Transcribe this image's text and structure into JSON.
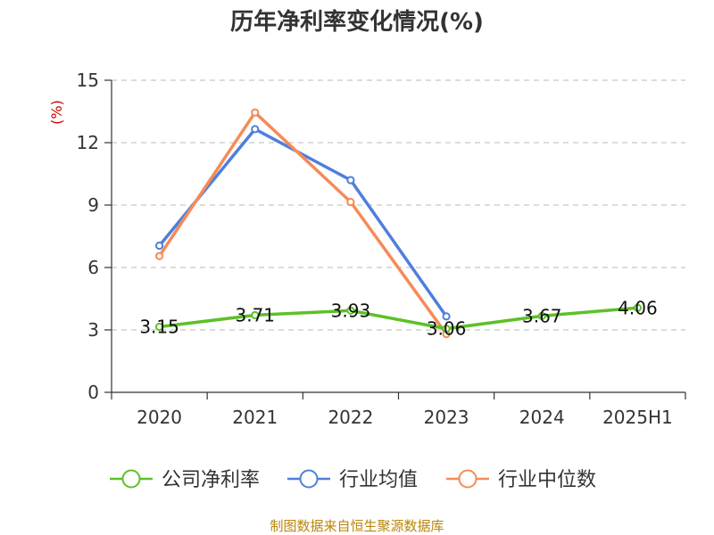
{
  "chart_data": {
    "type": "line",
    "title": "历年净利率变化情况(%)",
    "ylabel": "(%)",
    "categories": [
      "2020",
      "2021",
      "2022",
      "2023",
      "2024",
      "2025H1"
    ],
    "ylim": [
      0,
      15
    ],
    "yticks": [
      "0",
      "3",
      "6",
      "9",
      "12",
      "15"
    ],
    "grid": true,
    "legend_position": "bottom",
    "series": [
      {
        "name": "公司净利率",
        "color": "#5cc128",
        "values": [
          3.15,
          3.71,
          3.93,
          3.06,
          3.67,
          4.06
        ],
        "labels": [
          "3.15",
          "3.71",
          "3.93",
          "3.06",
          "3.67",
          "4.06"
        ]
      },
      {
        "name": "行业均值",
        "color": "#4f7fdc",
        "values": [
          7.05,
          12.65,
          10.2,
          3.65,
          null,
          null
        ]
      },
      {
        "name": "行业中位数",
        "color": "#f58b58",
        "values": [
          6.55,
          13.45,
          9.15,
          2.8,
          null,
          null
        ]
      }
    ]
  },
  "source": "制图数据来自恒生聚源数据库"
}
